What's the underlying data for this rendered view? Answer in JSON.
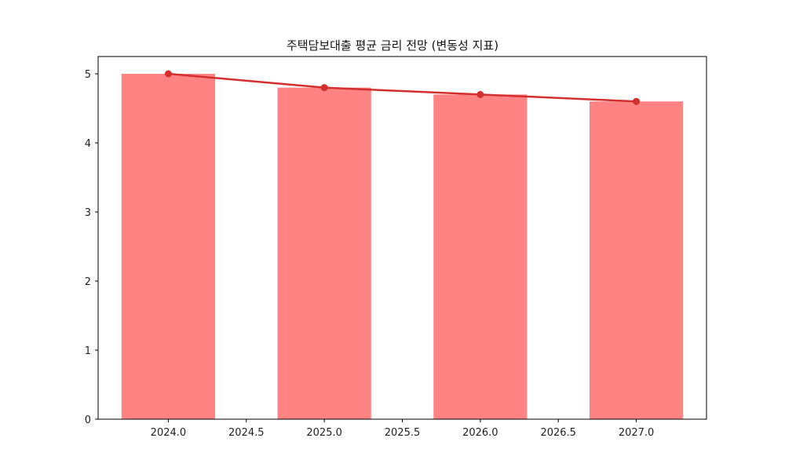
{
  "chart_data": {
    "type": "bar",
    "title": "주택담보대출 평균 금리 전망 (변동성 지표)",
    "xlabel": "",
    "ylabel": "",
    "categories": [
      2024,
      2025,
      2026,
      2027
    ],
    "series": [
      {
        "name": "bar",
        "kind": "bar",
        "color": "#ff8383",
        "values": [
          5.0,
          4.8,
          4.7,
          4.6
        ]
      },
      {
        "name": "line",
        "kind": "line",
        "color": "#d32f2f",
        "marker": "circle",
        "values": [
          5.0,
          4.8,
          4.7,
          4.6
        ]
      }
    ],
    "xlim": [
      2023.55,
      2027.45
    ],
    "ylim": [
      0,
      5.25
    ],
    "xticks": [
      "2024.0",
      "2024.5",
      "2025.0",
      "2025.5",
      "2026.0",
      "2026.5",
      "2027.0"
    ],
    "xtick_values": [
      2024.0,
      2024.5,
      2025.0,
      2025.5,
      2026.0,
      2026.5,
      2027.0
    ],
    "yticks": [
      "0",
      "1",
      "2",
      "3",
      "4",
      "5"
    ],
    "ytick_values": [
      0,
      1,
      2,
      3,
      4,
      5
    ],
    "bar_width": 0.6,
    "grid": false,
    "legend": null
  }
}
